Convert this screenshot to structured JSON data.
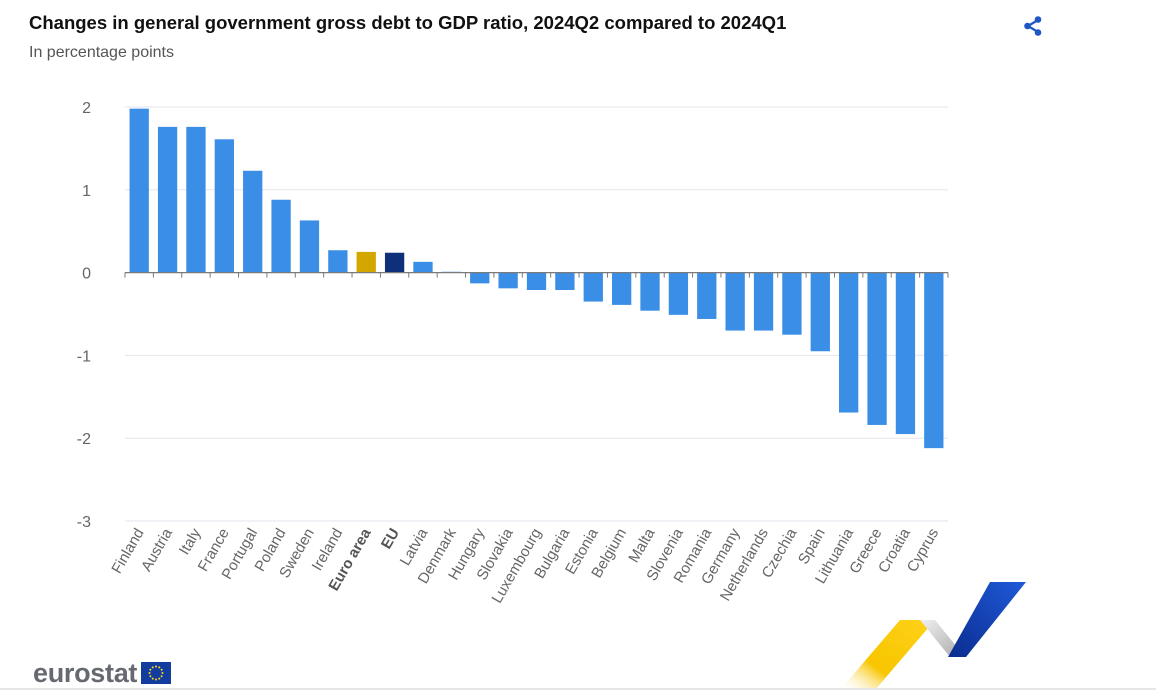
{
  "header": {
    "title": "Changes in general government gross debt to GDP ratio, 2024Q2 compared to 2024Q1",
    "subtitle": "In percentage points"
  },
  "brand": {
    "logo_text": "eurostat"
  },
  "colors": {
    "bar": "#3a8ee6",
    "euro_area": "#d4a600",
    "eu": "#0e2f7a",
    "grid": "#e4e6ee",
    "axis": "#7a7a7a",
    "tick_label": "#666666",
    "share_icon": "#1f58c6"
  },
  "chart_data": {
    "type": "bar",
    "title": "Changes in general government gross debt to GDP ratio, 2024Q2 compared to 2024Q1",
    "ylabel": "In percentage points",
    "xlabel": "",
    "ylim": [
      -3,
      2
    ],
    "yticks": [
      2,
      1,
      0,
      -1,
      -2,
      -3
    ],
    "grid": true,
    "categories": [
      "Finland",
      "Austria",
      "Italy",
      "France",
      "Portugal",
      "Poland",
      "Sweden",
      "Ireland",
      "Euro area",
      "EU",
      "Latvia",
      "Denmark",
      "Hungary",
      "Slovakia",
      "Luxembourg",
      "Bulgaria",
      "Estonia",
      "Belgium",
      "Malta",
      "Slovenia",
      "Romania",
      "Germany",
      "Netherlands",
      "Czechia",
      "Spain",
      "Lithuania",
      "Greece",
      "Croatia",
      "Cyprus"
    ],
    "values": [
      1.98,
      1.76,
      1.76,
      1.61,
      1.23,
      0.88,
      0.63,
      0.27,
      0.25,
      0.24,
      0.13,
      0.01,
      -0.13,
      -0.19,
      -0.21,
      -0.21,
      -0.35,
      -0.39,
      -0.46,
      -0.51,
      -0.56,
      -0.7,
      -0.7,
      -0.75,
      -0.95,
      -1.69,
      -1.84,
      -1.95,
      -2.12
    ],
    "highlight": {
      "Euro area": "euro_area",
      "EU": "eu"
    },
    "bold_labels": [
      "Euro area",
      "EU"
    ]
  }
}
